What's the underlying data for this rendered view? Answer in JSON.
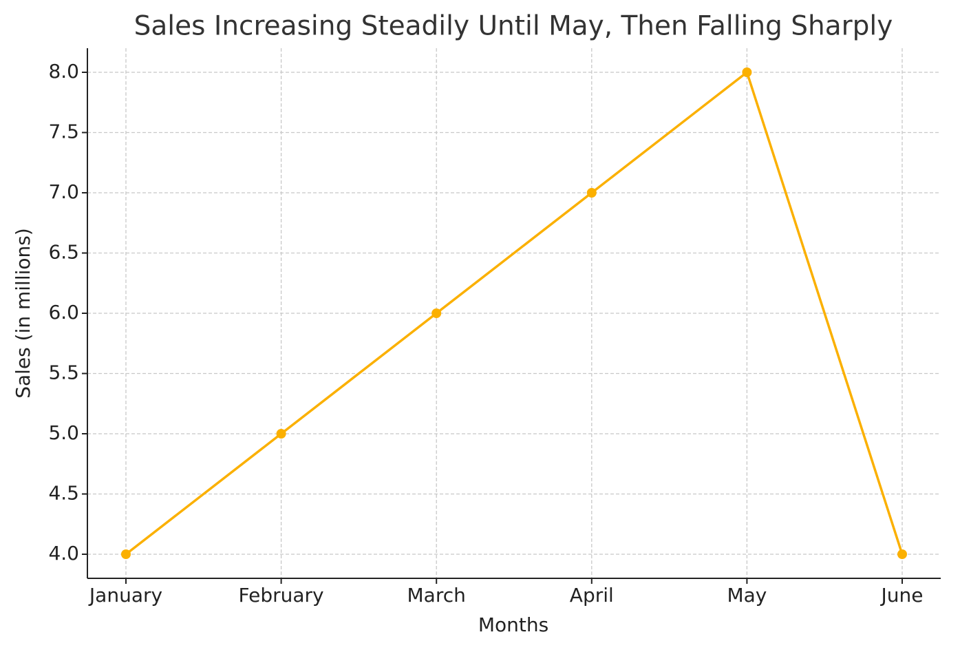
{
  "chart_data": {
    "type": "line",
    "title": "Sales Increasing Steadily Until May, Then Falling Sharply",
    "x_label": "Months",
    "y_label": "Sales (in millions)",
    "categories": [
      "January",
      "February",
      "March",
      "April",
      "May",
      "June"
    ],
    "series": [
      {
        "color": "#fbb000",
        "values": [
          4,
          5,
          6,
          7,
          8,
          4
        ]
      }
    ],
    "ylim": [
      3.8,
      8.2
    ],
    "yticks": [
      {
        "value": 4,
        "label": "4.0"
      },
      {
        "value": 4.5,
        "label": "4.5"
      },
      {
        "value": 5,
        "label": "5.0"
      },
      {
        "value": 5.5,
        "label": "5.5"
      },
      {
        "value": 6,
        "label": "6.0"
      },
      {
        "value": 6.5,
        "label": "6.5"
      },
      {
        "value": 7,
        "label": "7.0"
      },
      {
        "value": 7.5,
        "label": "7.5"
      },
      {
        "value": 8,
        "label": "8.0"
      }
    ],
    "grid": true
  }
}
